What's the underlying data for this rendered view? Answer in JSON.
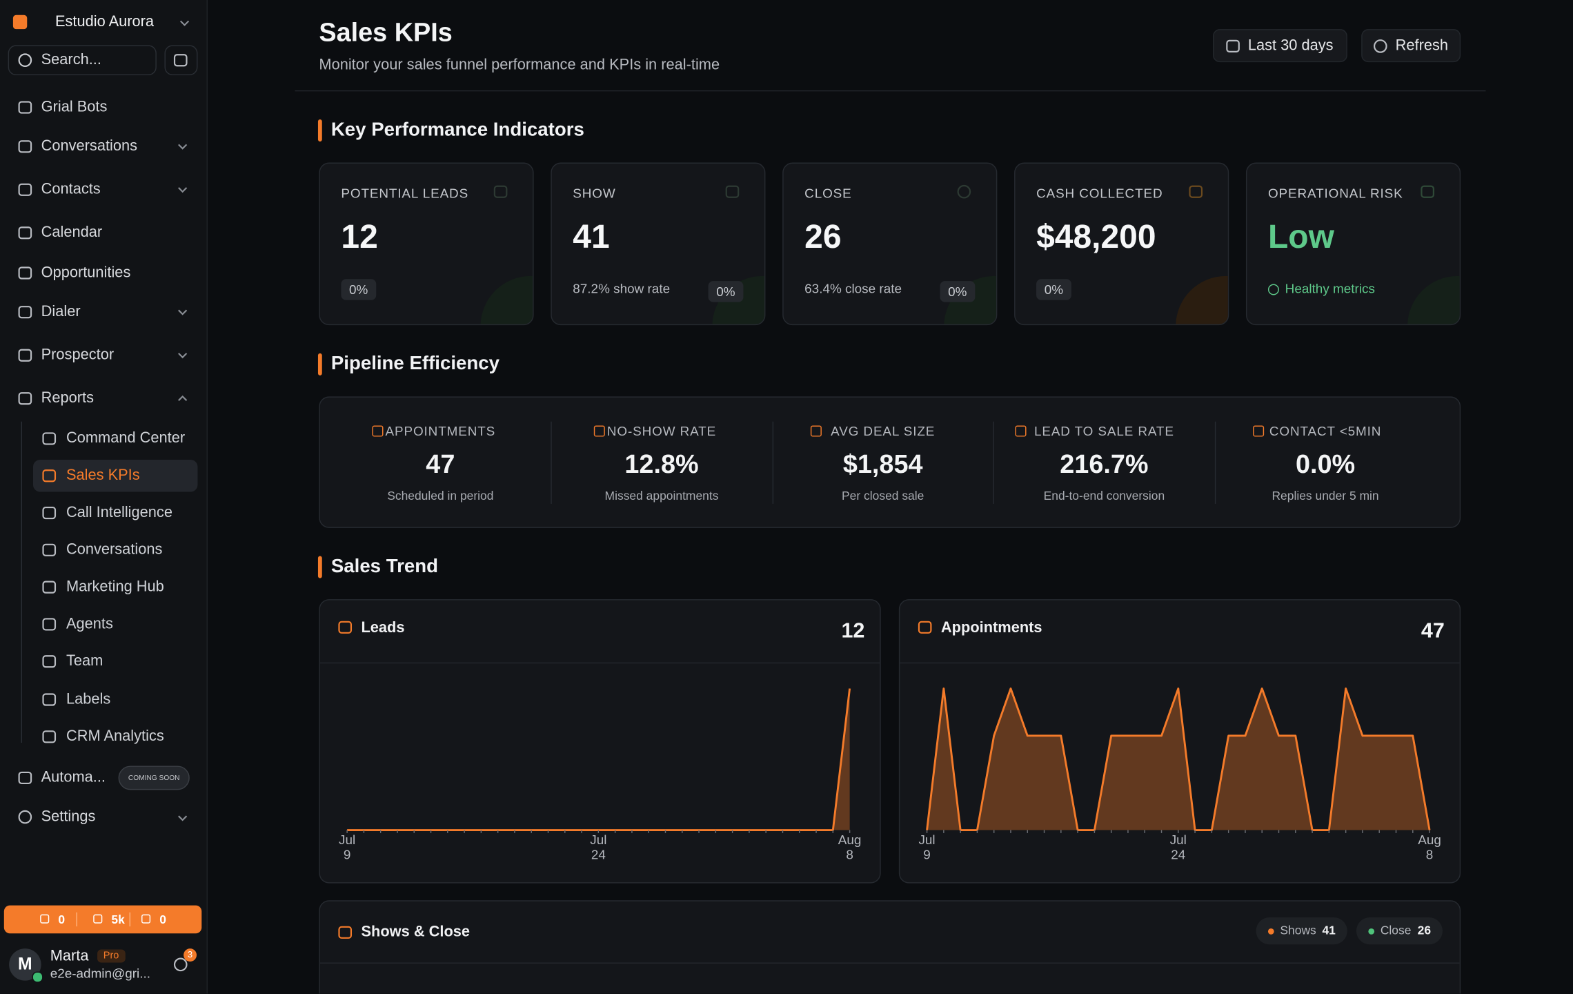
{
  "sidebar": {
    "workspace": "Estudio Aurora",
    "search": "Search...",
    "nav": [
      {
        "label": "Grial Bots",
        "chevron": ""
      },
      {
        "label": "Conversations",
        "chevron": "down"
      },
      {
        "label": "Contacts",
        "chevron": "down"
      },
      {
        "label": "Calendar",
        "chevron": ""
      },
      {
        "label": "Opportunities",
        "chevron": ""
      },
      {
        "label": "Dialer",
        "chevron": "down"
      },
      {
        "label": "Prospector",
        "chevron": "down"
      },
      {
        "label": "Reports",
        "chevron": "up"
      }
    ],
    "reports_children": [
      "Command Center",
      "Sales KPIs",
      "Call Intelligence",
      "Conversations",
      "Marketing Hub",
      "Agents",
      "Team",
      "Labels",
      "CRM Analytics"
    ],
    "active_child": "Sales KPIs",
    "automations": {
      "label": "Automa...",
      "badge": "COMING SOON"
    },
    "settings": "Settings",
    "stats": [
      "0",
      "5k",
      "0"
    ],
    "user": {
      "initial": "M",
      "name": "Marta",
      "plan": "Pro",
      "email": "e2e-admin@gri...",
      "notifications": "3"
    }
  },
  "header": {
    "title": "Sales KPIs",
    "subtitle": "Monitor your sales funnel performance and KPIs in real-time",
    "range": "Last 30 days",
    "refresh": "Refresh"
  },
  "kpi": {
    "title": "Key Performance Indicators",
    "cards": [
      {
        "label": "POTENTIAL LEADS",
        "value": "12",
        "note": "",
        "change": "0%"
      },
      {
        "label": "SHOW",
        "value": "41",
        "note": "87.2% show rate",
        "change": "0%"
      },
      {
        "label": "CLOSE",
        "value": "26",
        "note": "63.4% close rate",
        "change": "0%"
      },
      {
        "label": "CASH COLLECTED",
        "value": "$48,200",
        "note": "",
        "change": "0%"
      },
      {
        "label": "OPERATIONAL RISK",
        "value": "Low",
        "note": "Healthy metrics",
        "change": ""
      }
    ]
  },
  "pipeline": {
    "title": "Pipeline Efficiency",
    "items": [
      {
        "label": "APPOINTMENTS",
        "value": "47",
        "note": "Scheduled in period"
      },
      {
        "label": "NO-SHOW RATE",
        "value": "12.8%",
        "note": "Missed appointments"
      },
      {
        "label": "AVG DEAL SIZE",
        "value": "$1,854",
        "note": "Per closed sale"
      },
      {
        "label": "LEAD TO SALE RATE",
        "value": "216.7%",
        "note": "End-to-end conversion"
      },
      {
        "label": "CONTACT <5MIN",
        "value": "0.0%",
        "note": "Replies under 5 min"
      }
    ]
  },
  "trend": {
    "title": "Sales Trend",
    "charts": [
      {
        "type": "area",
        "title": "Leads",
        "total": 12,
        "color": "#f47b2a",
        "categories": [
          "Jul 9",
          null,
          null,
          null,
          null,
          null,
          null,
          null,
          null,
          null,
          null,
          null,
          null,
          null,
          null,
          "Jul 24",
          null,
          null,
          null,
          null,
          null,
          null,
          null,
          null,
          null,
          null,
          null,
          null,
          null,
          null,
          "Aug 8"
        ],
        "values": [
          0,
          0,
          0,
          0,
          0,
          0,
          0,
          0,
          0,
          0,
          0,
          0,
          0,
          0,
          0,
          0,
          0,
          0,
          0,
          0,
          0,
          0,
          0,
          0,
          0,
          0,
          0,
          0,
          0,
          0,
          12
        ]
      },
      {
        "type": "area",
        "title": "Appointments",
        "total": 47,
        "color": "#f47b2a",
        "categories": [
          "Jul 9",
          null,
          null,
          null,
          null,
          null,
          null,
          null,
          null,
          null,
          null,
          null,
          null,
          null,
          null,
          "Jul 24",
          null,
          null,
          null,
          null,
          null,
          null,
          null,
          null,
          null,
          null,
          null,
          null,
          null,
          null,
          "Aug 8"
        ],
        "values": [
          0,
          3,
          0,
          0,
          2,
          3,
          2,
          2,
          2,
          0,
          0,
          2,
          2,
          2,
          2,
          3,
          0,
          0,
          2,
          2,
          3,
          2,
          2,
          0,
          0,
          3,
          2,
          2,
          2,
          2,
          0
        ]
      }
    ]
  },
  "shows_close": {
    "title": "Shows & Close",
    "legend": [
      {
        "name": "Shows",
        "value": 41,
        "color": "#f47b2a"
      },
      {
        "name": "Close",
        "value": 26,
        "color": "#4fc37a"
      }
    ]
  }
}
